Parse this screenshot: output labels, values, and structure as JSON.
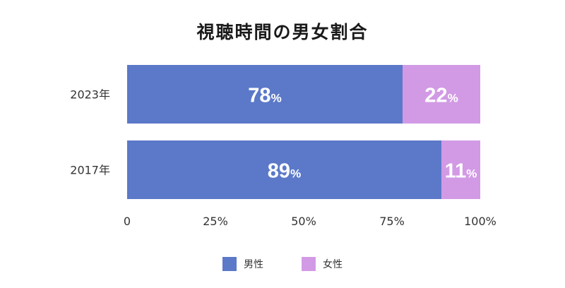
{
  "chart_data": {
    "type": "bar",
    "orientation": "horizontal",
    "stacked": true,
    "title": "視聴時間の男女割合",
    "categories": [
      "2023年",
      "2017年"
    ],
    "series": [
      {
        "name": "男性",
        "color": "#5b79c8",
        "values": [
          78,
          89
        ]
      },
      {
        "name": "女性",
        "color": "#d29ae5",
        "values": [
          22,
          11
        ]
      }
    ],
    "value_unit": "%",
    "xlim": [
      0,
      100
    ],
    "xticks": [
      "0",
      "25%",
      "50%",
      "75%",
      "100%"
    ],
    "grid": false,
    "legend_position": "bottom"
  }
}
